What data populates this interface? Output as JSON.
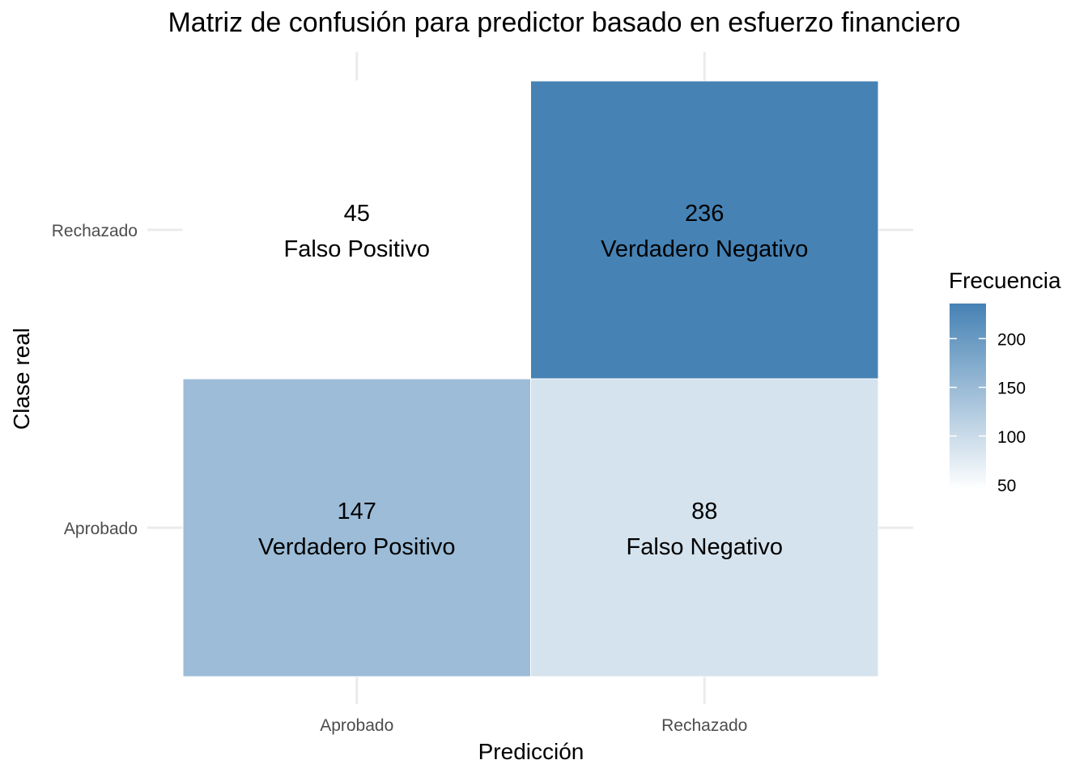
{
  "chart_data": {
    "type": "heatmap",
    "title": "Matriz de confusión para predictor basado en esfuerzo financiero",
    "xlabel": "Predicción",
    "ylabel": "Clase real",
    "x_categories": [
      "Aprobado",
      "Rechazado"
    ],
    "y_categories": [
      "Aprobado",
      "Rechazado"
    ],
    "cells": [
      {
        "x": "Aprobado",
        "y": "Rechazado",
        "value": 45,
        "label": "Falso Positivo"
      },
      {
        "x": "Rechazado",
        "y": "Rechazado",
        "value": 236,
        "label": "Verdadero Negativo"
      },
      {
        "x": "Aprobado",
        "y": "Aprobado",
        "value": 147,
        "label": "Verdadero Positivo"
      },
      {
        "x": "Rechazado",
        "y": "Aprobado",
        "value": 88,
        "label": "Falso Negativo"
      }
    ],
    "legend": {
      "title": "Frecuencia",
      "ticks": [
        50,
        100,
        150,
        200
      ],
      "range": [
        45,
        236
      ],
      "low_color": "#ffffff",
      "high_color": "#4682b4",
      "placement": "right"
    },
    "grid": true
  }
}
